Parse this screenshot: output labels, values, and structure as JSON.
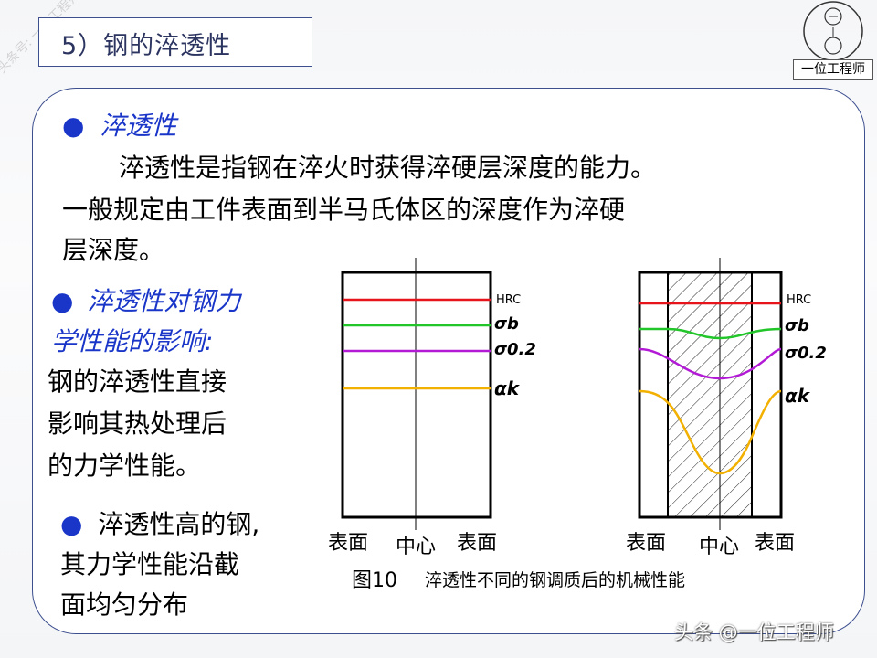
{
  "header": {
    "title": "5）钢的淬透性"
  },
  "logo": {
    "label": "一位工程师"
  },
  "watermark": {
    "side_text": "头条号: 一位工程师",
    "footer": "头条 @一位工程师"
  },
  "section1": {
    "heading": "淬透性",
    "lines": [
      "淬透性是指钢在淬火时获得淬硬层深度的能力。",
      "一般规定由工件表面到半马氏体区的深度作为淬硬",
      "层深度。"
    ]
  },
  "section2": {
    "heading_lines": [
      "淬透性对钢力",
      "学性能的影响:"
    ],
    "body_lines": [
      "钢的淬透性直接",
      "影响其热处理后",
      "的力学性能。"
    ]
  },
  "section3": {
    "lines": [
      "淬透性高的钢,",
      "其力学性能沿截",
      "面均匀分布"
    ]
  },
  "figure": {
    "caption_num": "图10",
    "caption_text": "淬透性不同的钢调质后的机械性能",
    "left_panel": {
      "x_labels": [
        "表面",
        "中心",
        "表面"
      ],
      "curve_labels": [
        "HRC",
        "σb",
        "σ0.2",
        "αk"
      ]
    },
    "right_panel": {
      "x_labels": [
        "表面",
        "中心",
        "表面"
      ],
      "curve_labels": [
        "HRC",
        "σb",
        "σ0.2",
        "αk"
      ]
    },
    "colors": {
      "hrc": "#e8141c",
      "sigma_b": "#22c62a",
      "sigma_02": "#b21ad6",
      "alpha_k": "#f2b000"
    }
  }
}
